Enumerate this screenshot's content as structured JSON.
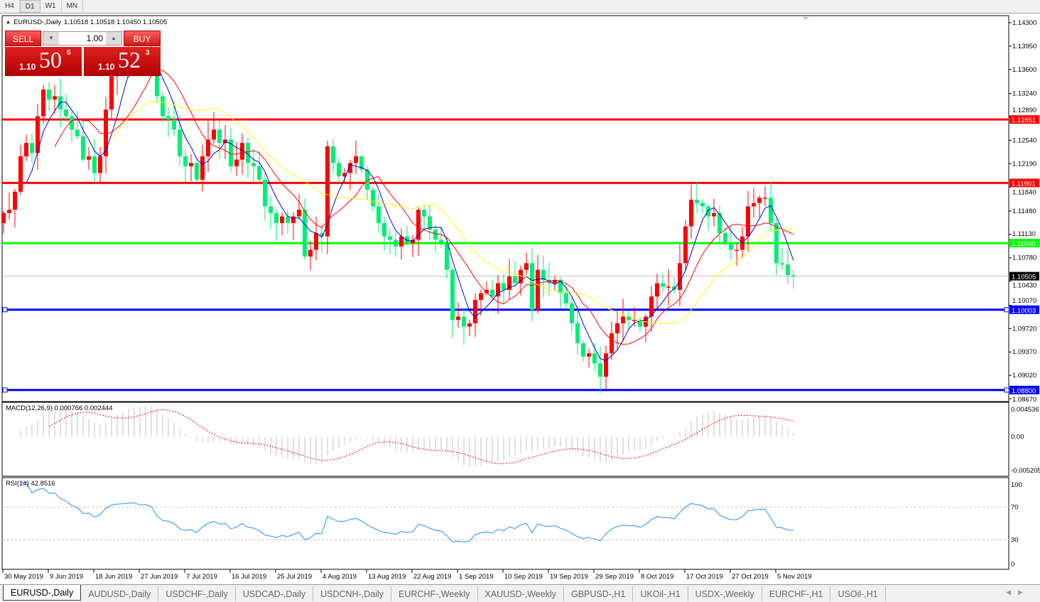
{
  "timeframes": [
    "H4",
    "D1",
    "W1",
    "MN"
  ],
  "selected_timeframe": "D1",
  "header": {
    "symbol": "EURUSD-,Daily",
    "ohlc": "1.10518 1.10518 1.10450 1.10505"
  },
  "trade_panel": {
    "sell_label": "SELL",
    "buy_label": "BUY",
    "lot": "1.00",
    "sell_price": {
      "small": "1.10",
      "big": "50",
      "pip": "5"
    },
    "buy_price": {
      "small": "1.10",
      "big": "52",
      "pip": "3"
    }
  },
  "price_axis": {
    "ticks": [
      "1.14300",
      "1.13950",
      "1.13600",
      "1.13240",
      "1.12890",
      "1.12540",
      "1.12190",
      "1.11840",
      "1.11480",
      "1.11130",
      "1.10780",
      "1.10430",
      "1.10070",
      "1.09720",
      "1.09370",
      "1.09020",
      "1.08670"
    ],
    "range": [
      1.0867,
      1.143
    ]
  },
  "levels": [
    {
      "price": "1.12851",
      "color": "#ff0000"
    },
    {
      "price": "1.11901",
      "color": "#ff0000"
    },
    {
      "price": "1.11000",
      "color": "#00ff00"
    },
    {
      "price": "1.10003",
      "color": "#0000ff"
    },
    {
      "price": "1.08800",
      "color": "#0000ff"
    }
  ],
  "current_price": "1.10505",
  "colors": {
    "bull": "#ff0000",
    "bear": "#00ee76",
    "ma_fast": "#0000cc",
    "ma_mid": "#ff0000",
    "ma_slow": "#ffff00",
    "rsi": "#1e90ff",
    "macd_hist": "#c0c0c0",
    "macd_signal": "#ff0000"
  },
  "macd": {
    "label": "MACD(12,26,9) 0.000766 0.002444",
    "ticks": [
      "0.004536",
      "0.00",
      "-0.005205"
    ]
  },
  "rsi": {
    "label": "RSI(14) 42.8516",
    "ticks": [
      "100",
      "70",
      "30",
      "0"
    ]
  },
  "date_labels": [
    "30 May 2019",
    "9 Jun 2019",
    "18 Jun 2019",
    "27 Jun 2019",
    "7 Jul 2019",
    "16 Jul 2019",
    "25 Jul 2019",
    "4 Aug 2019",
    "13 Aug 2019",
    "22 Aug 2019",
    "1 Sep 2019",
    "10 Sep 2019",
    "19 Sep 2019",
    "29 Sep 2019",
    "8 Oct 2019",
    "17 Oct 2019",
    "27 Oct 2019",
    "5 Nov 2019"
  ],
  "closes": [
    1.1145,
    1.115,
    1.1177,
    1.123,
    1.125,
    1.1235,
    1.129,
    1.133,
    1.1315,
    1.132,
    1.13,
    1.129,
    1.127,
    1.126,
    1.1225,
    1.123,
    1.1205,
    1.123,
    1.13,
    1.135,
    1.1365,
    1.137,
    1.138,
    1.1385,
    1.1375,
    1.138,
    1.137,
    1.132,
    1.129,
    1.1285,
    1.127,
    1.123,
    1.1215,
    1.122,
    1.1195,
    1.123,
    1.1255,
    1.127,
    1.125,
    1.1255,
    1.1215,
    1.1225,
    1.125,
    1.122,
    1.1215,
    1.1195,
    1.1155,
    1.1145,
    1.113,
    1.114,
    1.113,
    1.114,
    1.115,
    1.108,
    1.109,
    1.1115,
    1.111,
    1.1245,
    1.122,
    1.12,
    1.1205,
    1.122,
    1.123,
    1.121,
    1.118,
    1.1155,
    1.113,
    1.111,
    1.1105,
    1.1095,
    1.111,
    1.11,
    1.1105,
    1.115,
    1.114,
    1.112,
    1.1105,
    1.11,
    1.106,
    1.0985,
    1.099,
    1.0975,
    1.098,
    1.1015,
    1.1025,
    1.103,
    1.102,
    1.104,
    1.103,
    1.105,
    1.104,
    1.106,
    1.107,
    1.1,
    1.106,
    1.1045,
    1.104,
    1.1045,
    1.1025,
    1.101,
    1.098,
    1.095,
    1.093,
    1.0935,
    1.092,
    1.09,
    1.0935,
    1.0965,
    1.098,
    1.099,
    1.0985,
    1.0985,
    1.0975,
    1.099,
    1.102,
    1.104,
    1.1035,
    1.1035,
    1.103,
    1.107,
    1.1125,
    1.1165,
    1.116,
    1.1155,
    1.114,
    1.1145,
    1.1115,
    1.11,
    1.109,
    1.109,
    1.111,
    1.1155,
    1.116,
    1.1168,
    1.1168,
    1.113,
    1.107,
    1.1068,
    1.1052,
    1.10505
  ],
  "tabs": [
    "EURUSD-,Daily",
    "AUDUSD-,Daily",
    "USDCHF-,Daily",
    "USDCAD-,Daily",
    "USDCNH-,Daily",
    "EURCHF-,Weekly",
    "XAUUSD-,Weekly",
    "GBPUSD-,H1",
    "UKOil-,H1",
    "USDX-,Weekly",
    "EURCHF-,H1",
    "USOil-,H1"
  ],
  "active_tab": "EURUSD-,Daily"
}
